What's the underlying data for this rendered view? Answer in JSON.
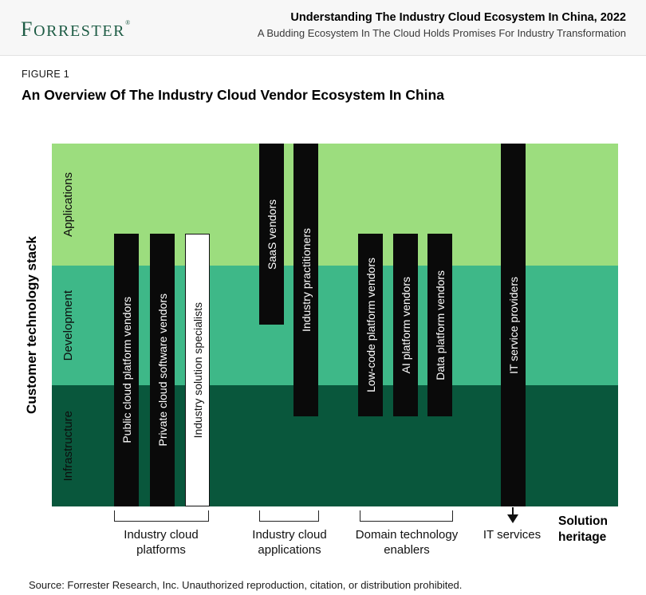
{
  "header": {
    "logo_text": "FORRESTER",
    "logo_reg": "®",
    "title": "Understanding The Industry Cloud Ecosystem In China, 2022",
    "subtitle": "A Budding Ecosystem In The Cloud Holds Promises For Industry Transformation"
  },
  "figure": {
    "label": "FIGURE 1",
    "title": "An Overview Of The Industry Cloud Vendor Ecosystem In China"
  },
  "diagram": {
    "y_axis_label": "Customer technology stack",
    "bottom_axis_label": "Solution heritage",
    "bands": [
      {
        "name": "Applications",
        "color": "#9cdd7e"
      },
      {
        "name": "Development",
        "color": "#3eb888"
      },
      {
        "name": "Infrastructure",
        "color": "#09573c"
      }
    ],
    "bar_colors": {
      "filled": "#0a0a0a",
      "open_fill": "#ffffff",
      "open_border": "#111111"
    },
    "bars": [
      {
        "label": "Public cloud platform vendors",
        "variant": "filled",
        "covers": [
          "Applications (lower part)",
          "Development",
          "Infrastructure"
        ]
      },
      {
        "label": "Private cloud software vendors",
        "variant": "filled",
        "covers": [
          "Applications (lower part)",
          "Development",
          "Infrastructure"
        ]
      },
      {
        "label": "Industry solution specialists",
        "variant": "open",
        "covers": [
          "Applications (lower part)",
          "Development",
          "Infrastructure"
        ]
      },
      {
        "label": "SaaS vendors",
        "variant": "filled",
        "covers": [
          "Applications",
          "Development (upper part)"
        ]
      },
      {
        "label": "Industry practitioners",
        "variant": "filled",
        "covers": [
          "Applications",
          "Development",
          "Infrastructure (upper part)"
        ]
      },
      {
        "label": "Low-code platform vendors",
        "variant": "filled",
        "covers": [
          "Applications (lower part)",
          "Development",
          "Infrastructure (upper part)"
        ]
      },
      {
        "label": "AI platform vendors",
        "variant": "filled",
        "covers": [
          "Applications (lower part)",
          "Development",
          "Infrastructure (upper part)"
        ]
      },
      {
        "label": "Data platform vendors",
        "variant": "filled",
        "covers": [
          "Applications (lower part)",
          "Development",
          "Infrastructure (upper part)"
        ]
      },
      {
        "label": "IT service providers",
        "variant": "filled",
        "covers": [
          "Applications",
          "Development",
          "Infrastructure"
        ]
      }
    ],
    "groups": [
      {
        "label": "Industry cloud platforms",
        "indicator": "bracket",
        "members": [
          "Public cloud platform vendors",
          "Private cloud software vendors",
          "Industry solution specialists"
        ]
      },
      {
        "label": "Industry cloud applications",
        "indicator": "bracket",
        "members": [
          "SaaS vendors",
          "Industry practitioners"
        ]
      },
      {
        "label": "Domain technology enablers",
        "indicator": "bracket",
        "members": [
          "Low-code platform vendors",
          "AI platform vendors",
          "Data platform vendors"
        ]
      },
      {
        "label": "IT services",
        "indicator": "arrow",
        "members": [
          "IT service providers"
        ]
      }
    ]
  },
  "footer": {
    "source": "Source: Forrester Research, Inc. Unauthorized reproduction, citation, or distribution prohibited."
  }
}
